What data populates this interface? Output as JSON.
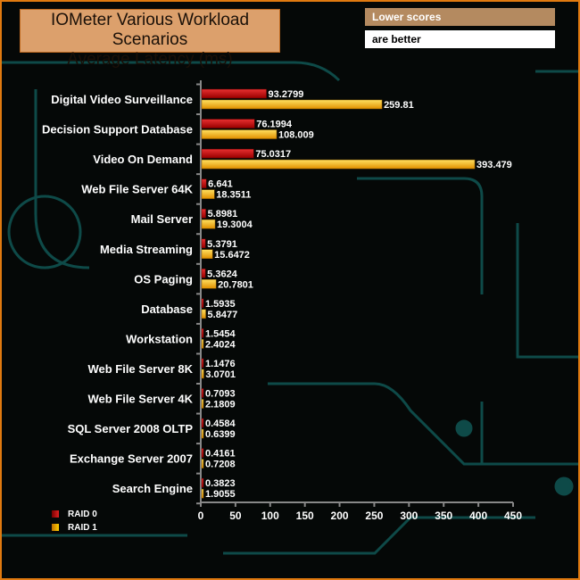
{
  "header": {
    "title_line1": "IOMeter Various Workload Scenarios",
    "title_line2": "Average Latency (ms)",
    "note_line1": "Lower scores",
    "note_line2": "are better"
  },
  "chart_data": {
    "type": "bar",
    "orientation": "horizontal",
    "title": "IOMeter Various Workload Scenarios Average Latency (ms)",
    "categories": [
      "Digital Video Surveillance",
      "Decision Support Database",
      "Video On Demand",
      "Web File Server 64K",
      "Mail Server",
      "Media Streaming",
      "OS Paging",
      "Database",
      "Workstation",
      "Web File Server 8K",
      "Web File Server 4K",
      "SQL Server 2008 OLTP",
      "Exchange Server 2007",
      "Search Engine"
    ],
    "series": [
      {
        "name": "RAID 0",
        "color": "#c81010",
        "values": [
          93.2799,
          76.1994,
          75.0317,
          6.641,
          5.8981,
          5.3791,
          5.3624,
          1.5935,
          1.5454,
          1.1476,
          0.7093,
          0.4584,
          0.4161,
          0.3823
        ]
      },
      {
        "name": "RAID 1",
        "color": "#f5b800",
        "values": [
          259.81,
          108.009,
          393.479,
          18.3511,
          19.3004,
          15.6472,
          20.7801,
          5.8477,
          2.4024,
          3.0701,
          2.1809,
          0.6399,
          0.7208,
          1.9055
        ]
      }
    ],
    "xlim": [
      0,
      450
    ],
    "xticks": [
      "0",
      "50",
      "100",
      "150",
      "200",
      "250",
      "300",
      "350",
      "400",
      "450"
    ],
    "legend": "bottom-left"
  }
}
